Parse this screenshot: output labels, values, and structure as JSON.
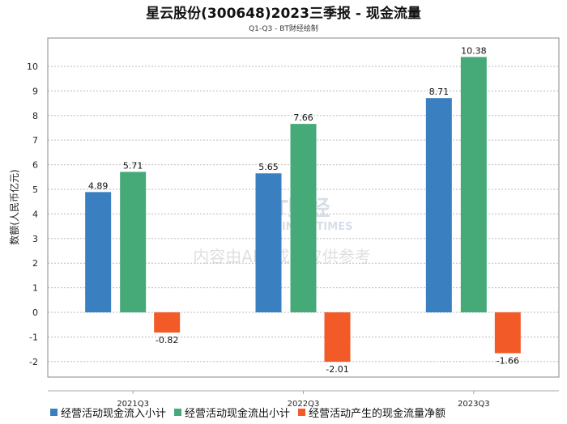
{
  "chart_data": {
    "type": "bar",
    "title": "星云股份(300648)2023三季报 - 现金流量",
    "subtitle": "Q1-Q3 - BT财经绘制",
    "ylabel": "数额(人民币亿元)",
    "xlabel": "",
    "categories": [
      "2021Q3",
      "2022Q3",
      "2023Q3"
    ],
    "series": [
      {
        "name": "经营活动现金流入小计",
        "color": "#3a80c0",
        "values": [
          4.89,
          5.65,
          8.71
        ]
      },
      {
        "name": "经营活动现金流出小计",
        "color": "#46aa78",
        "values": [
          5.71,
          7.66,
          10.38
        ]
      },
      {
        "name": "经营活动产生的现金流量净额",
        "color": "#f25a28",
        "values": [
          -0.82,
          -2.01,
          -1.66
        ]
      }
    ],
    "ylim": [
      -2.63,
      11.15
    ],
    "yticks": [
      -2,
      -1,
      0,
      1,
      2,
      3,
      4,
      5,
      6,
      7,
      8,
      9,
      10
    ],
    "grid": true,
    "legend": "bottom",
    "watermark": [
      "BT财经",
      "BUSINESSTIMES",
      "内容由AI生成，仅供参考"
    ]
  }
}
